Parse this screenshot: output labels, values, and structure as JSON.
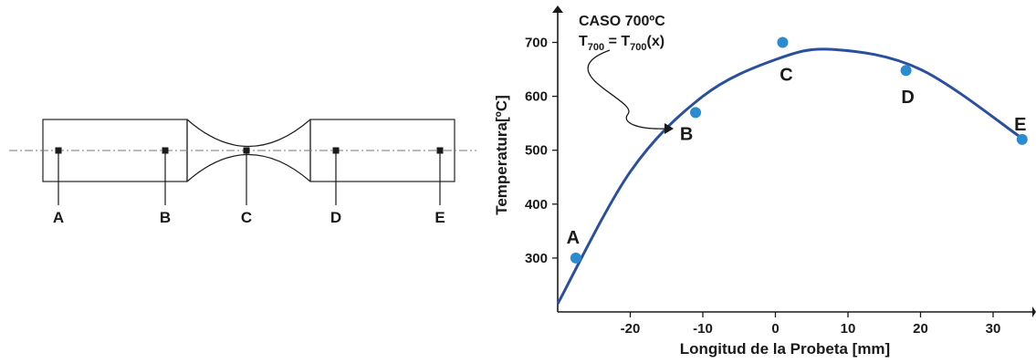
{
  "specimen": {
    "points": [
      "A",
      "B",
      "C",
      "D",
      "E"
    ]
  },
  "chart_data": {
    "type": "scatter",
    "xlabel": "Longitud de la Probeta [mm]",
    "ylabel": "Temperatura[ºC]",
    "xlim": [
      -30,
      35
    ],
    "ylim": [
      200,
      730
    ],
    "xticks": [
      -20,
      -10,
      0,
      10,
      20,
      30
    ],
    "yticks": [
      300,
      400,
      500,
      600,
      700
    ],
    "annotation": {
      "line1": "CASO 700ºC",
      "eq_T": "T",
      "eq_sub": "700",
      "eq_mid": " = T",
      "eq_sub2": "700",
      "eq_end": "(x)"
    },
    "curve_color": "#2a4f9e",
    "point_color": "#2a8bd0",
    "series": [
      {
        "points": [
          {
            "label": "A",
            "x": -27.5,
            "y": 300
          },
          {
            "label": "B",
            "x": -11,
            "y": 570
          },
          {
            "label": "C",
            "x": 1,
            "y": 700
          },
          {
            "label": "D",
            "x": 18,
            "y": 648
          },
          {
            "label": "E",
            "x": 34,
            "y": 520
          }
        ]
      }
    ],
    "fit_curve": {
      "x": [
        -30,
        -20,
        -10,
        0,
        8,
        20,
        34
      ],
      "y": [
        215,
        460,
        600,
        668,
        687,
        650,
        522
      ]
    }
  }
}
